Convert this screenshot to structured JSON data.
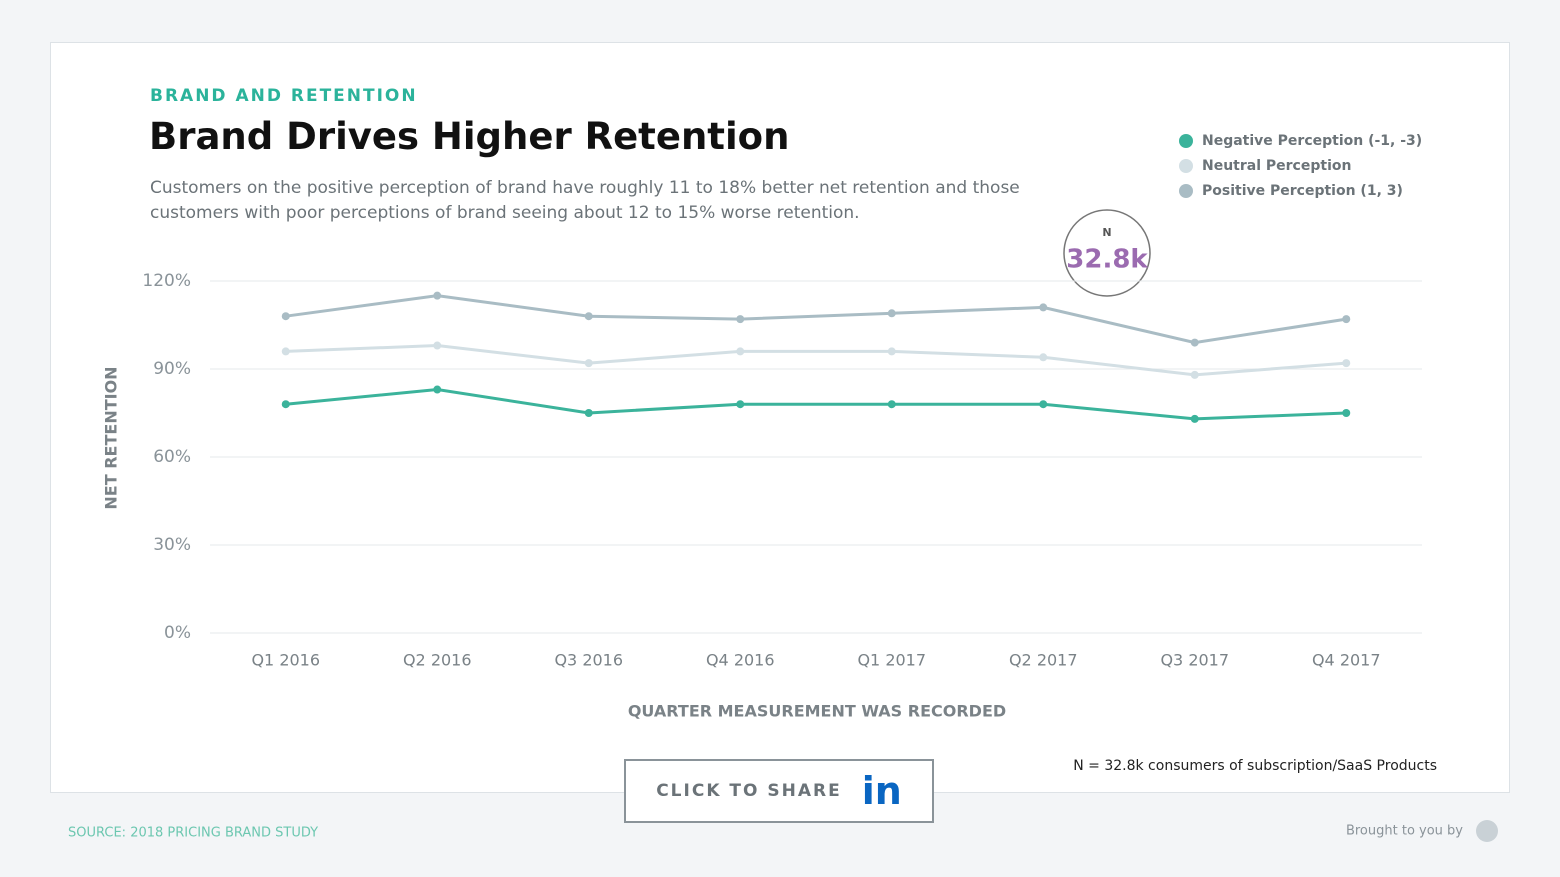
{
  "header": {
    "kicker": "BRAND AND RETENTION",
    "title": "Brand Drives Higher Retention",
    "subtitle": "Customers on the positive perception of brand have roughly 11 to 18% better net retention and those customers with poor perceptions of brand seeing about 12 to 15% worse retention."
  },
  "badge": {
    "label": "N",
    "value": "32.8k"
  },
  "chart_data": {
    "type": "line",
    "y_label": "NET RETENTION",
    "x_label": "QUARTER MEASUREMENT WAS RECORDED",
    "categories": [
      "Q1 2016",
      "Q2 2016",
      "Q3 2016",
      "Q4 2016",
      "Q1 2017",
      "Q2 2017",
      "Q3 2017",
      "Q4 2017"
    ],
    "series": [
      {
        "name": "Negative Perception (-1, -3)",
        "color": "#3bb39b",
        "values": [
          78,
          83,
          75,
          78,
          78,
          78,
          73,
          75
        ]
      },
      {
        "name": "Neutral Perception",
        "color": "#d3dfe4",
        "values": [
          96,
          98,
          92,
          96,
          96,
          94,
          88,
          92
        ]
      },
      {
        "name": "Positive Perception (1, 3)",
        "color": "#a9bcc4",
        "values": [
          108,
          115,
          108,
          107,
          109,
          111,
          99,
          107
        ]
      }
    ],
    "ylim": [
      0,
      120
    ],
    "yticks": [
      {
        "value": 0,
        "label": "0%"
      },
      {
        "value": 30,
        "label": "30%"
      },
      {
        "value": 60,
        "label": "60%"
      },
      {
        "value": 90,
        "label": "90%"
      },
      {
        "value": 120,
        "label": "120%"
      }
    ],
    "grid": true,
    "legend": "top-right"
  },
  "footnote": "N = 32.8k consumers of subscription/SaaS Products",
  "share": {
    "label": "CLICK TO SHARE",
    "icon": "in"
  },
  "source": "SOURCE: 2018 PRICING BRAND STUDY",
  "credit": "Brought to you by"
}
